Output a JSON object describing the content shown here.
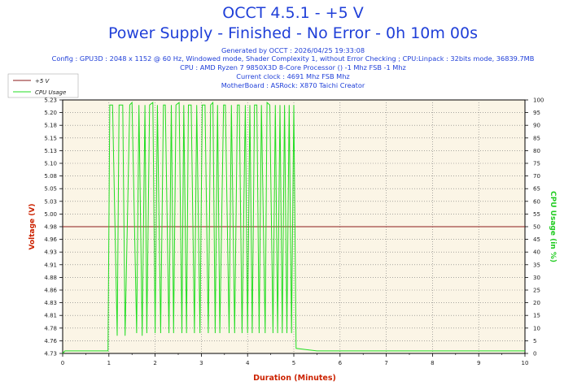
{
  "header": {
    "title": "OCCT 4.5.1 - +5 V",
    "subtitle": "Power Supply - Finished - No Error - 0h 10m 00s",
    "info_lines": [
      "Generated by OCCT : 2026/04/25 19:33:08",
      "Config : GPU3D : 2048 x 1152 @ 60 Hz, Windowed mode, Shader Complexity 1, without Error Checking ; CPU:Linpack : 32bits mode, 36839.7MB",
      "CPU : AMD Ryzen 7 9850X3D 8-Core Processor () -1 Mhz FSB -1 Mhz",
      "Current clock : 4691 Mhz FSB  Mhz",
      "MotherBoard : ASRock: X870 Taichi Creator"
    ]
  },
  "colors": {
    "voltage": "#8b1a1a",
    "cpu": "#22dd22",
    "title": "#1f3fd8",
    "plot_bg": "#fbf5e6",
    "axis_label": "#cc2200",
    "cpu_axis_label": "#22cc22"
  },
  "chart_data": {
    "type": "line",
    "title": "OCCT 4.5.1 - +5 V",
    "xlabel": "Duration (Minutes)",
    "ylabel": "Voltage (V)",
    "y2label": "CPU Usage (in %)",
    "xlim": [
      0,
      10
    ],
    "ylim": [
      4.73,
      5.23
    ],
    "y2lim": [
      0,
      100
    ],
    "x_ticks": [
      "0",
      "1",
      "2",
      "3",
      "4",
      "5",
      "6",
      "7",
      "8",
      "9",
      "10"
    ],
    "y_ticks": [
      "4.73",
      "4.76",
      "4.78",
      "4.81",
      "4.83",
      "4.86",
      "4.88",
      "4.91",
      "4.93",
      "4.96",
      "4.98",
      "5.00",
      "5.03",
      "5.05",
      "5.08",
      "5.10",
      "5.13",
      "5.15",
      "5.18",
      "5.20",
      "5.23"
    ],
    "y2_ticks": [
      "0",
      "5",
      "10",
      "15",
      "20",
      "25",
      "30",
      "35",
      "40",
      "45",
      "50",
      "55",
      "60",
      "65",
      "70",
      "75",
      "80",
      "85",
      "90",
      "95",
      "100"
    ],
    "grid": true,
    "legend": "top-left",
    "series": [
      {
        "name": "+5 V",
        "axis": "left",
        "x": [
          0,
          10
        ],
        "values": [
          4.98,
          4.98
        ]
      },
      {
        "name": "CPU Usage",
        "axis": "right",
        "x": [
          0,
          0.05,
          0.5,
          0.98,
          1.02,
          1.08,
          1.18,
          1.22,
          1.3,
          1.35,
          1.45,
          1.5,
          1.6,
          1.65,
          1.72,
          1.78,
          1.82,
          1.88,
          1.95,
          2.0,
          2.05,
          2.12,
          2.18,
          2.22,
          2.3,
          2.35,
          2.4,
          2.45,
          2.52,
          2.58,
          2.62,
          2.68,
          2.72,
          2.78,
          2.85,
          2.9,
          2.97,
          3.02,
          3.08,
          3.15,
          3.2,
          3.25,
          3.3,
          3.35,
          3.4,
          3.48,
          3.52,
          3.6,
          3.65,
          3.72,
          3.78,
          3.82,
          3.88,
          3.95,
          4.0,
          4.05,
          4.1,
          4.15,
          4.2,
          4.25,
          4.3,
          4.38,
          4.42,
          4.48,
          4.55,
          4.6,
          4.65,
          4.7,
          4.75,
          4.8,
          4.85,
          4.9,
          4.95,
          5.0,
          5.05,
          5.5,
          6.0,
          6.5,
          7.0,
          7.5,
          8.0,
          8.5,
          9.0,
          9.5,
          10.0
        ],
        "values": [
          0,
          1,
          1,
          1,
          98,
          98,
          7,
          98,
          98,
          7,
          98,
          99,
          8,
          98,
          7,
          98,
          8,
          98,
          99,
          8,
          98,
          8,
          98,
          98,
          8,
          98,
          8,
          98,
          99,
          8,
          98,
          8,
          98,
          98,
          8,
          98,
          8,
          98,
          98,
          8,
          98,
          99,
          8,
          98,
          8,
          98,
          98,
          8,
          98,
          8,
          98,
          98,
          8,
          98,
          8,
          98,
          8,
          98,
          98,
          8,
          98,
          8,
          99,
          98,
          8,
          98,
          8,
          98,
          8,
          98,
          8,
          98,
          8,
          98,
          2,
          1,
          1,
          1,
          1,
          1,
          1,
          1,
          1,
          1,
          1
        ]
      }
    ]
  }
}
